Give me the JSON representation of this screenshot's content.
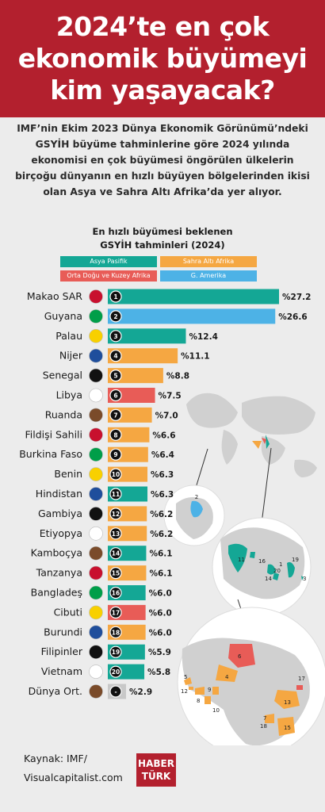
{
  "header": {
    "title": "2024’te en çok ekonomik büyümeyi kim yaşayacak?"
  },
  "intro": "IMF’nin Ekim 2023 Dünya Ekonomik Görünümü’ndeki GSYİH büyüme tahminlerine göre 2024 yılında ekonomisi en çok büyümesi öngörülen ülkelerin birçoğu dünyanın en hızlı büyüyen bölgelerinden ikisi olan Asya ve Sahra Altı Afrika’da yer alıyor.",
  "chart_title_line1": "En hızlı büyümesi beklenen",
  "chart_title_line2": "GSYİH tahminleri (2024)",
  "colors": {
    "asia": "#14a795",
    "africa": "#f5a742",
    "mena": "#e85c57",
    "america": "#4db2e6",
    "world": "#c8c8c8",
    "header": "#b3202e"
  },
  "legend": [
    {
      "key": "asia",
      "label": "Asya Pasifik"
    },
    {
      "key": "africa",
      "label": "Sahra Altı Afrika"
    },
    {
      "key": "mena",
      "label": "Orta Doğu ve Kuzey Afrika"
    },
    {
      "key": "america",
      "label": "G. Amerika"
    }
  ],
  "chart_data": {
    "type": "bar",
    "orientation": "horizontal",
    "title": "En hızlı büyümesi beklenen GSYİH tahminleri (2024)",
    "categories": [
      "Makao SAR",
      "Guyana",
      "Palau",
      "Nijer",
      "Senegal",
      "Libya",
      "Ruanda",
      "Fildişi Sahili",
      "Burkina Faso",
      "Benin",
      "Hindistan",
      "Gambiya",
      "Etiyopya",
      "Kamboçya",
      "Tanzanya",
      "Bangladeş",
      "Cibuti",
      "Burundi",
      "Filipinler",
      "Vietnam",
      "Dünya Ort."
    ],
    "ranks": [
      "1",
      "2",
      "3",
      "4",
      "5",
      "6",
      "7",
      "8",
      "9",
      "10",
      "11",
      "12",
      "13",
      "14",
      "15",
      "16",
      "17",
      "18",
      "19",
      "20",
      "-"
    ],
    "values": [
      27.2,
      26.6,
      12.4,
      11.1,
      8.8,
      7.5,
      7.0,
      6.6,
      6.4,
      6.3,
      6.3,
      6.2,
      6.2,
      6.1,
      6.1,
      6.0,
      6.0,
      6.0,
      5.9,
      5.8,
      2.9
    ],
    "value_labels": [
      "%27.2",
      "%26.6",
      "%12.4",
      "%11.1",
      "%8.8",
      "%7.5",
      "%7.0",
      "%6.6",
      "%6.4",
      "%6.3",
      "%6.3",
      "%6.2",
      "%6.2",
      "%6.1",
      "%6.1",
      "%6.0",
      "%6.0",
      "%6.0",
      "%5.9",
      "%5.8",
      "%2.9"
    ],
    "regions": [
      "asia",
      "america",
      "asia",
      "africa",
      "africa",
      "mena",
      "africa",
      "africa",
      "africa",
      "africa",
      "asia",
      "africa",
      "africa",
      "asia",
      "africa",
      "asia",
      "mena",
      "africa",
      "asia",
      "asia",
      "world"
    ]
  },
  "map_labels": {
    "america": [
      "2"
    ],
    "asia": [
      "11",
      "16",
      "1",
      "19",
      "20",
      "14",
      "3"
    ],
    "africa": [
      "6",
      "17",
      "4",
      "5",
      "8",
      "9",
      "10",
      "13",
      "12",
      "7",
      "18",
      "15"
    ]
  },
  "source": {
    "line1": "Kaynak: IMF/",
    "line2": "Visualcapitalist.com"
  },
  "logo": {
    "line1": "HABER",
    "line2": "TÜRK"
  }
}
